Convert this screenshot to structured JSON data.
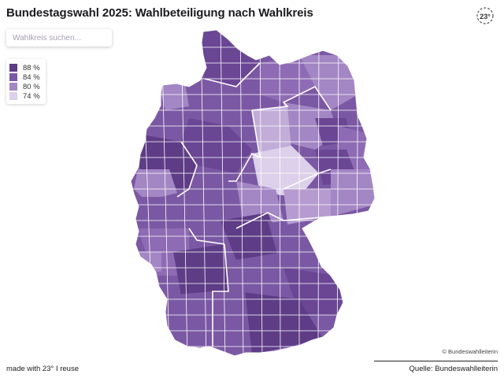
{
  "header": {
    "title": "Bundestagswahl 2025: Wahlbeteiligung nach Wahlkreis",
    "logo_icon": "23-degrees-logo-icon"
  },
  "search": {
    "placeholder": "Wahlkreis suchen..."
  },
  "legend": {
    "items": [
      {
        "label": "88 %",
        "color": "#5e3c86"
      },
      {
        "label": "84 %",
        "color": "#7b58a3"
      },
      {
        "label": "80 %",
        "color": "#a386c4"
      },
      {
        "label": "74 %",
        "color": "#dcd0ea"
      }
    ]
  },
  "map": {
    "country": "Deutschland",
    "colors": {
      "highest": "#5e3c86",
      "high": "#7b58a3",
      "medium": "#a386c4",
      "low": "#dcd0ea"
    }
  },
  "footer": {
    "copyright": "© Bundeswahlleiterin",
    "made_with": "made with 23° I reuse",
    "source": "Quelle: Bundeswahlleiterin"
  }
}
